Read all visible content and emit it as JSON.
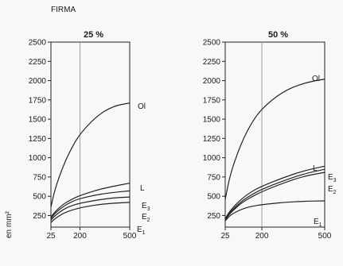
{
  "header": {
    "text": "FIRMA"
  },
  "ylabel": "en mm²",
  "chart_data": [
    {
      "type": "line",
      "title": "25 %",
      "x": [
        25,
        50,
        100,
        150,
        200,
        300,
        400,
        500
      ],
      "xticks": [
        25,
        200,
        500
      ],
      "yticks": [
        250,
        500,
        750,
        1000,
        1250,
        1500,
        1750,
        2000,
        2250,
        2500
      ],
      "ylim": [
        100,
        2500
      ],
      "xlim": [
        25,
        500
      ],
      "grid_x": [
        200
      ],
      "series": [
        {
          "name": "Ol",
          "values": [
            360,
            600,
            900,
            1130,
            1310,
            1540,
            1670,
            1710
          ]
        },
        {
          "name": "L",
          "values": [
            230,
            300,
            400,
            460,
            510,
            580,
            630,
            670
          ]
        },
        {
          "name": "E3",
          "values": [
            210,
            280,
            370,
            430,
            470,
            520,
            550,
            570
          ]
        },
        {
          "name": "E2",
          "values": [
            190,
            250,
            330,
            380,
            410,
            450,
            480,
            490
          ]
        },
        {
          "name": "E1",
          "values": [
            160,
            210,
            280,
            320,
            350,
            390,
            410,
            420
          ]
        }
      ]
    },
    {
      "type": "line",
      "title": "50 %",
      "x": [
        25,
        50,
        100,
        150,
        200,
        300,
        400,
        500
      ],
      "xticks": [
        25,
        200,
        500
      ],
      "yticks": [
        250,
        500,
        750,
        1000,
        1250,
        1500,
        1750,
        2000,
        2250,
        2500
      ],
      "ylim": [
        100,
        2500
      ],
      "xlim": [
        25,
        500
      ],
      "grid_x": [
        200
      ],
      "series": [
        {
          "name": "Ol",
          "values": [
            460,
            800,
            1180,
            1450,
            1640,
            1860,
            1970,
            2020
          ]
        },
        {
          "name": "L",
          "values": [
            210,
            320,
            460,
            560,
            630,
            740,
            830,
            890
          ]
        },
        {
          "name": "E3",
          "values": [
            200,
            300,
            430,
            520,
            590,
            700,
            790,
            850
          ]
        },
        {
          "name": "E2",
          "values": [
            195,
            285,
            410,
            490,
            560,
            670,
            760,
            810
          ]
        },
        {
          "name": "E1",
          "values": [
            180,
            260,
            330,
            370,
            390,
            420,
            435,
            440
          ]
        }
      ]
    }
  ]
}
